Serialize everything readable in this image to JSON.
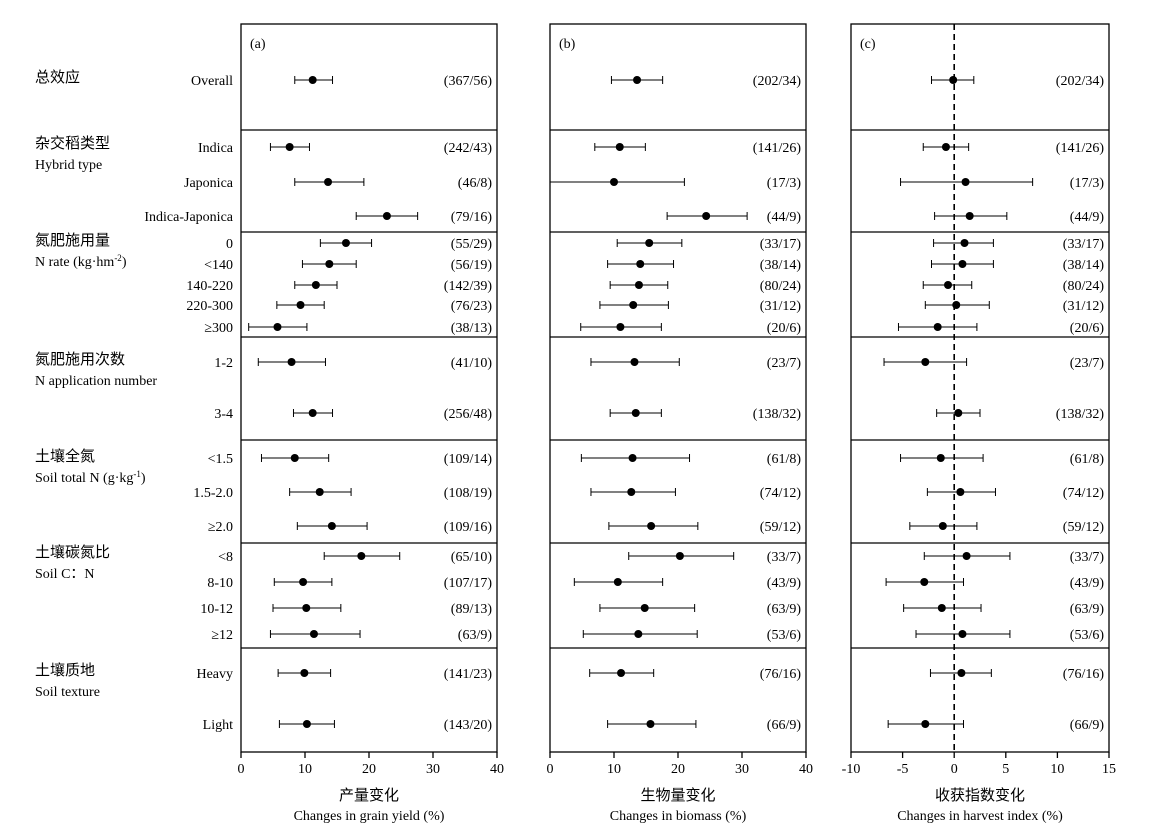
{
  "chart_data": [
    {
      "type": "forest",
      "panel_label": "(a)",
      "xlim": [
        0,
        40
      ],
      "xticks": [
        0,
        10,
        20,
        30,
        40
      ],
      "xlabel_cn": "产量变化",
      "xlabel_en": "Changes in grain yield (%)",
      "reference_line": null,
      "points": [
        {
          "est": 11.2,
          "lo": 8.4,
          "hi": 14.3,
          "n": "(367/56)"
        },
        {
          "est": 7.6,
          "lo": 4.6,
          "hi": 10.7,
          "n": "(242/43)"
        },
        {
          "est": 13.6,
          "lo": 8.4,
          "hi": 19.2,
          "n": "(46/8)"
        },
        {
          "est": 22.8,
          "lo": 18.0,
          "hi": 27.6,
          "n": "(79/16)"
        },
        {
          "est": 16.4,
          "lo": 12.4,
          "hi": 20.4,
          "n": "(55/29)"
        },
        {
          "est": 13.8,
          "lo": 9.6,
          "hi": 18.0,
          "n": "(56/19)"
        },
        {
          "est": 11.7,
          "lo": 8.4,
          "hi": 15.0,
          "n": "(142/39)"
        },
        {
          "est": 9.3,
          "lo": 5.6,
          "hi": 13.0,
          "n": "(76/23)"
        },
        {
          "est": 5.7,
          "lo": 1.2,
          "hi": 10.3,
          "n": "(38/13)"
        },
        {
          "est": 7.9,
          "lo": 2.7,
          "hi": 13.2,
          "n": "(41/10)"
        },
        {
          "est": 11.2,
          "lo": 8.2,
          "hi": 14.3,
          "n": "(256/48)"
        },
        {
          "est": 8.4,
          "lo": 3.2,
          "hi": 13.7,
          "n": "(109/14)"
        },
        {
          "est": 12.3,
          "lo": 7.6,
          "hi": 17.2,
          "n": "(108/19)"
        },
        {
          "est": 14.2,
          "lo": 8.8,
          "hi": 19.7,
          "n": "(109/16)"
        },
        {
          "est": 18.8,
          "lo": 13.0,
          "hi": 24.8,
          "n": "(65/10)"
        },
        {
          "est": 9.7,
          "lo": 5.2,
          "hi": 14.2,
          "n": "(107/17)"
        },
        {
          "est": 10.2,
          "lo": 5.0,
          "hi": 15.6,
          "n": "(89/13)"
        },
        {
          "est": 11.4,
          "lo": 4.6,
          "hi": 18.6,
          "n": "(63/9)"
        },
        {
          "est": 9.9,
          "lo": 5.8,
          "hi": 14.0,
          "n": "(141/23)"
        },
        {
          "est": 10.3,
          "lo": 6.0,
          "hi": 14.6,
          "n": "(143/20)"
        }
      ]
    },
    {
      "type": "forest",
      "panel_label": "(b)",
      "xlim": [
        0,
        40
      ],
      "xticks": [
        0,
        10,
        20,
        30,
        40
      ],
      "xlabel_cn": "生物量变化",
      "xlabel_en": "Changes in biomass (%)",
      "reference_line": null,
      "points": [
        {
          "est": 13.6,
          "lo": 9.6,
          "hi": 17.6,
          "n": "(202/34)"
        },
        {
          "est": 10.9,
          "lo": 7.0,
          "hi": 14.9,
          "n": "(141/26)"
        },
        {
          "est": 10.0,
          "lo": 0,
          "hi": 21.0,
          "n": "(17/3)"
        },
        {
          "est": 24.4,
          "lo": 18.3,
          "hi": 30.8,
          "n": "(44/9)"
        },
        {
          "est": 15.5,
          "lo": 10.5,
          "hi": 20.6,
          "n": "(33/17)"
        },
        {
          "est": 14.1,
          "lo": 9.0,
          "hi": 19.3,
          "n": "(38/14)"
        },
        {
          "est": 13.9,
          "lo": 9.4,
          "hi": 18.4,
          "n": "(80/24)"
        },
        {
          "est": 13.0,
          "lo": 7.8,
          "hi": 18.5,
          "n": "(31/12)"
        },
        {
          "est": 11.0,
          "lo": 4.8,
          "hi": 17.4,
          "n": "(20/6)"
        },
        {
          "est": 13.2,
          "lo": 6.4,
          "hi": 20.2,
          "n": "(23/7)"
        },
        {
          "est": 13.4,
          "lo": 9.4,
          "hi": 17.4,
          "n": "(138/32)"
        },
        {
          "est": 12.9,
          "lo": 4.9,
          "hi": 21.8,
          "n": "(61/8)"
        },
        {
          "est": 12.7,
          "lo": 6.4,
          "hi": 19.6,
          "n": "(74/12)"
        },
        {
          "est": 15.8,
          "lo": 9.2,
          "hi": 23.1,
          "n": "(59/12)"
        },
        {
          "est": 20.3,
          "lo": 12.3,
          "hi": 28.7,
          "n": "(33/7)"
        },
        {
          "est": 10.6,
          "lo": 3.8,
          "hi": 17.6,
          "n": "(43/9)"
        },
        {
          "est": 14.8,
          "lo": 7.8,
          "hi": 22.6,
          "n": "(63/9)"
        },
        {
          "est": 13.8,
          "lo": 5.2,
          "hi": 23.0,
          "n": "(53/6)"
        },
        {
          "est": 11.1,
          "lo": 6.2,
          "hi": 16.2,
          "n": "(76/16)"
        },
        {
          "est": 15.7,
          "lo": 9.0,
          "hi": 22.8,
          "n": "(66/9)"
        }
      ]
    },
    {
      "type": "forest",
      "panel_label": "(c)",
      "xlim": [
        -10,
        15
      ],
      "xticks": [
        -10,
        -5,
        0,
        5,
        10,
        15
      ],
      "xlabel_cn": "收获指数变化",
      "xlabel_en": "Changes in harvest index (%)",
      "reference_line": 0,
      "points": [
        {
          "est": -0.1,
          "lo": -2.2,
          "hi": 1.9,
          "n": "(202/34)"
        },
        {
          "est": -0.8,
          "lo": -3.0,
          "hi": 1.4,
          "n": "(141/26)"
        },
        {
          "est": 1.1,
          "lo": -5.2,
          "hi": 7.6,
          "n": "(17/3)"
        },
        {
          "est": 1.5,
          "lo": -1.9,
          "hi": 5.1,
          "n": "(44/9)"
        },
        {
          "est": 1.0,
          "lo": -2.0,
          "hi": 3.8,
          "n": "(33/17)"
        },
        {
          "est": 0.8,
          "lo": -2.2,
          "hi": 3.8,
          "n": "(38/14)"
        },
        {
          "est": -0.6,
          "lo": -3.0,
          "hi": 1.7,
          "n": "(80/24)"
        },
        {
          "est": 0.2,
          "lo": -2.8,
          "hi": 3.4,
          "n": "(31/12)"
        },
        {
          "est": -1.6,
          "lo": -5.4,
          "hi": 2.2,
          "n": "(20/6)"
        },
        {
          "est": -2.8,
          "lo": -6.8,
          "hi": 1.2,
          "n": "(23/7)"
        },
        {
          "est": 0.4,
          "lo": -1.7,
          "hi": 2.5,
          "n": "(138/32)"
        },
        {
          "est": -1.3,
          "lo": -5.2,
          "hi": 2.8,
          "n": "(61/8)"
        },
        {
          "est": 0.6,
          "lo": -2.6,
          "hi": 4.0,
          "n": "(74/12)"
        },
        {
          "est": -1.1,
          "lo": -4.3,
          "hi": 2.2,
          "n": "(59/12)"
        },
        {
          "est": 1.2,
          "lo": -2.9,
          "hi": 5.4,
          "n": "(33/7)"
        },
        {
          "est": -2.9,
          "lo": -6.6,
          "hi": 0.9,
          "n": "(43/9)"
        },
        {
          "est": -1.2,
          "lo": -4.9,
          "hi": 2.6,
          "n": "(63/9)"
        },
        {
          "est": 0.8,
          "lo": -3.7,
          "hi": 5.4,
          "n": "(53/6)"
        },
        {
          "est": 0.7,
          "lo": -2.3,
          "hi": 3.6,
          "n": "(76/16)"
        },
        {
          "est": -2.8,
          "lo": -6.4,
          "hi": 0.9,
          "n": "(66/9)"
        }
      ]
    }
  ],
  "rows": [
    "Overall",
    "Indica",
    "Japonica",
    "Indica-Japonica",
    "0",
    "<140",
    "140-220",
    "220-300",
    "≥300",
    "1-2",
    "3-4",
    "<1.5",
    "1.5-2.0",
    "≥2.0",
    "<8",
    "8-10",
    "10-12",
    "≥12",
    "Heavy",
    "Light"
  ],
  "groups": [
    {
      "cn": "总效应",
      "en": ""
    },
    {
      "cn": "杂交稻类型",
      "en": "Hybrid type"
    },
    {
      "cn": "氮肥施用量",
      "en": "N rate (kg·hm",
      "en_sup": "-2",
      "en_tail": ")"
    },
    {
      "cn": "氮肥施用次数",
      "en": "N application number"
    },
    {
      "cn": "土壤全氮",
      "en": "Soil total N (g·kg",
      "en_sup": "-1",
      "en_tail": ")"
    },
    {
      "cn": "土壤碳氮比",
      "en": "Soil C：N"
    },
    {
      "cn": "土壤质地",
      "en": "Soil texture"
    }
  ]
}
